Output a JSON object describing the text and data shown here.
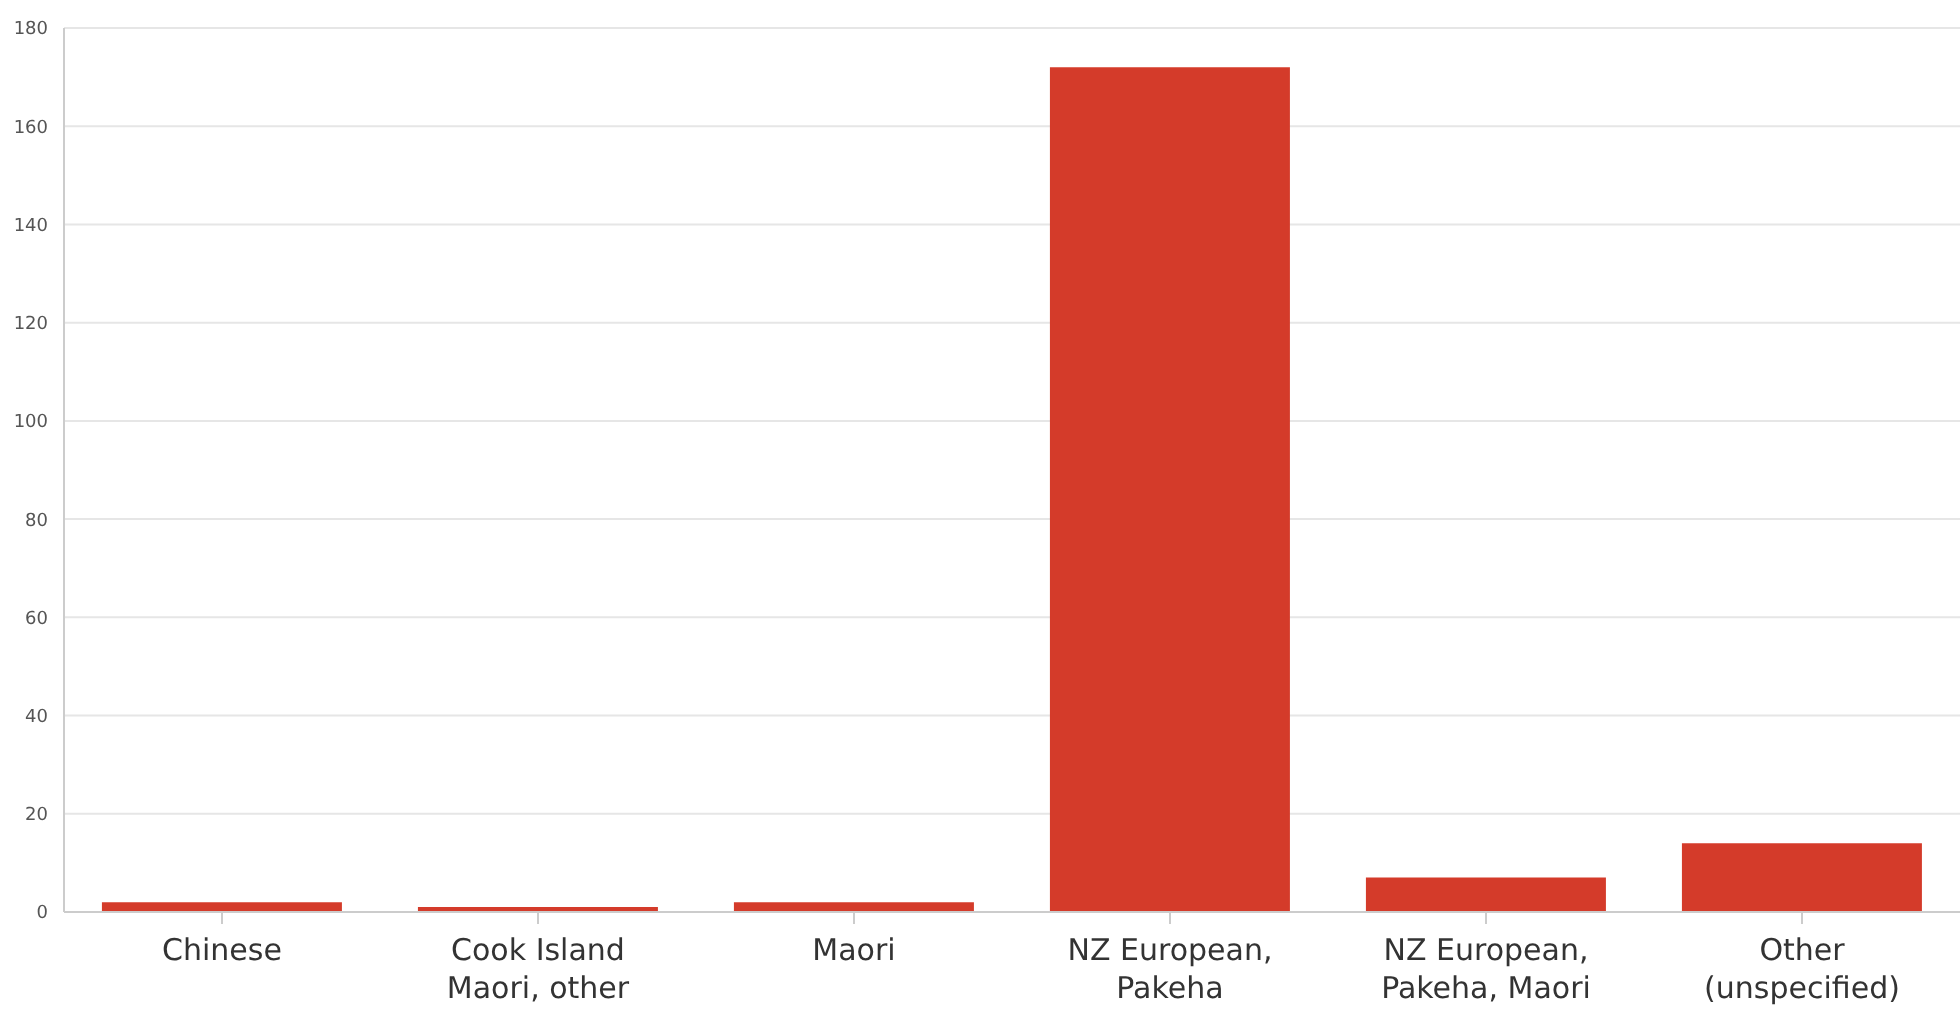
{
  "chart_data": {
    "type": "bar",
    "categories": [
      "Chinese",
      "Cook Island Maori, other",
      "Maori",
      "NZ European, Pakeha",
      "NZ European, Pakeha, Maori",
      "Other (unspecified)"
    ],
    "values": [
      2,
      1,
      2,
      172,
      7,
      14
    ],
    "color": "#d43b2a",
    "ylim": [
      0,
      180
    ],
    "yticks": [
      0,
      20,
      40,
      60,
      80,
      100,
      120,
      140,
      160,
      180
    ],
    "grid": "y"
  }
}
